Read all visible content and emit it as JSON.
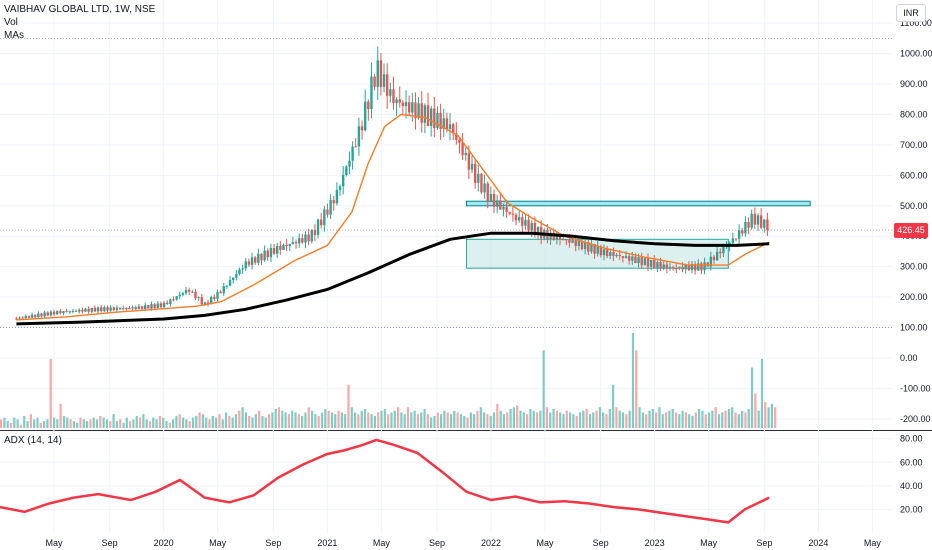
{
  "header": {
    "symbol_line": "VAIBHAV GLOBAL LTD, 1W, NSE",
    "vol_label": "Vol",
    "mas_label": "MAs",
    "currency": "INR",
    "last_price": "426.45",
    "adx_label": "ADX (14, 14)"
  },
  "colors": {
    "up": "#26a69a",
    "down": "#ef5350",
    "vol_up": "#80cbc4",
    "vol_down": "#f7a8a8",
    "ma_fast": "#f57c28",
    "ma_slow": "#000000",
    "adx": "#f23645",
    "box_fill": "#b2dfdb",
    "box_stroke": "#26a69a",
    "zone_fill": "#80deea",
    "zone_stroke": "#00838f"
  },
  "chart_data": [
    {
      "type": "line",
      "name": "price-panel",
      "x_ticks": [
        "May",
        "Sep",
        "2020",
        "May",
        "Sep",
        "2021",
        "May",
        "Sep",
        "2022",
        "May",
        "Sep",
        "2023",
        "May",
        "Sep",
        "2024",
        "May"
      ],
      "y_ticks": [
        "1100.00",
        "1000.00",
        "900.00",
        "800.00",
        "700.00",
        "600.00",
        "500.00",
        "400.00",
        "300.00",
        "200.00",
        "100.00",
        "0.00",
        "-100.00",
        "-200.00"
      ],
      "ylim": [
        -230,
        1130
      ],
      "dotted_levels": [
        1050,
        420,
        100
      ],
      "series": [
        {
          "x": [
            2019.1,
            2019.35,
            2019.6,
            2019.85,
            2020.0,
            2020.15,
            2020.25,
            2020.35,
            2020.5,
            2020.7,
            2020.9,
            2021.05,
            2021.2,
            2021.3,
            2021.4,
            2021.55,
            2021.75,
            2021.9,
            2022.0,
            2022.15,
            2022.3,
            2022.5,
            2022.7,
            2022.9,
            2023.1,
            2023.3,
            2023.5,
            2023.6,
            2023.7
          ],
          "values": [
            130,
            150,
            160,
            165,
            175,
            225,
            175,
            220,
            310,
            360,
            400,
            530,
            750,
            950,
            850,
            810,
            760,
            600,
            520,
            460,
            410,
            380,
            345,
            320,
            295,
            300,
            400,
            460,
            430
          ]
        },
        {
          "x": [
            2019.1,
            2019.4,
            2019.7,
            2019.95,
            2020.2,
            2020.35,
            2020.55,
            2020.8,
            2021.0,
            2021.15,
            2021.25,
            2021.35,
            2021.45,
            2021.6,
            2021.8,
            2021.95,
            2022.1,
            2022.25,
            2022.45,
            2022.7,
            2022.95,
            2023.2,
            2023.45,
            2023.55,
            2023.7
          ],
          "values": [
            125,
            135,
            150,
            160,
            170,
            185,
            240,
            320,
            370,
            480,
            640,
            760,
            800,
            790,
            730,
            620,
            510,
            460,
            400,
            360,
            330,
            305,
            305,
            340,
            380
          ]
        },
        {
          "x": [
            2019.1,
            2019.5,
            2020.0,
            2020.25,
            2020.5,
            2020.75,
            2021.0,
            2021.25,
            2021.5,
            2021.75,
            2022.0,
            2022.25,
            2022.5,
            2022.75,
            2023.0,
            2023.25,
            2023.5,
            2023.7
          ],
          "values": [
            112,
            118,
            128,
            140,
            160,
            190,
            225,
            280,
            340,
            390,
            410,
            410,
            400,
            385,
            375,
            370,
            370,
            375
          ]
        }
      ],
      "annotations": {
        "resistance_zone": {
          "x": [
            2021.85,
            2023.95
          ],
          "y": [
            500,
            515
          ]
        },
        "consolidation_box": {
          "x": [
            2021.85,
            2023.45
          ],
          "y": [
            295,
            390
          ]
        }
      }
    },
    {
      "type": "bar",
      "name": "volume-overlay",
      "values": [
        5,
        6,
        4,
        3,
        6,
        5,
        2,
        7,
        4,
        8,
        5,
        6,
        3,
        4,
        5,
        40,
        6,
        5,
        14,
        7,
        6,
        5,
        4,
        3,
        6,
        5,
        4,
        5,
        6,
        5,
        7,
        6,
        5,
        4,
        8,
        4,
        5,
        3,
        6,
        4,
        5,
        7,
        6,
        8,
        5,
        4,
        6,
        5,
        7,
        6,
        4,
        3,
        5,
        7,
        8,
        6,
        5,
        4,
        6,
        7,
        9,
        8,
        6,
        5,
        7,
        6,
        8,
        5,
        9,
        7,
        6,
        8,
        10,
        12,
        9,
        7,
        6,
        8,
        10,
        7,
        6,
        8,
        9,
        11,
        12,
        10,
        9,
        8,
        10,
        9,
        8,
        7,
        9,
        12,
        10,
        8,
        7,
        9,
        11,
        10,
        9,
        8,
        10,
        9,
        8,
        25,
        12,
        9,
        8,
        10,
        11,
        9,
        8,
        7,
        9,
        10,
        11,
        8,
        9,
        10,
        12,
        9,
        8,
        12,
        9,
        10,
        8,
        9,
        11,
        8,
        6,
        7,
        9,
        8,
        10,
        9,
        8,
        10,
        9,
        8,
        7,
        6,
        9,
        8,
        10,
        12,
        9,
        8,
        7,
        9,
        14,
        10,
        8,
        9,
        11,
        12,
        13,
        10,
        9,
        8,
        11,
        10,
        9,
        10,
        45,
        12,
        9,
        11,
        10,
        9,
        8,
        10,
        9,
        8,
        7,
        9,
        10,
        11,
        8,
        9,
        10,
        12,
        9,
        8,
        11,
        25,
        12,
        10,
        9,
        8,
        10,
        55,
        45,
        12,
        9,
        8,
        10,
        11,
        9,
        12,
        8,
        9,
        10,
        11,
        9,
        8,
        10,
        9,
        8,
        7,
        9,
        11,
        10,
        8,
        9,
        10,
        12,
        8,
        9,
        10,
        11,
        12,
        9,
        8,
        10,
        9,
        11,
        35,
        20,
        10,
        40,
        15,
        12,
        14,
        12
      ]
    },
    {
      "type": "line",
      "name": "adx-panel",
      "y_ticks": [
        "80.00",
        "60.00",
        "40.00",
        "20.00"
      ],
      "ylim": [
        0,
        84
      ],
      "x": [
        2019.0,
        2019.15,
        2019.3,
        2019.45,
        2019.6,
        2019.8,
        2019.95,
        2020.1,
        2020.25,
        2020.4,
        2020.55,
        2020.7,
        2020.85,
        2021.0,
        2021.1,
        2021.2,
        2021.3,
        2021.4,
        2021.55,
        2021.7,
        2021.85,
        2022.0,
        2022.15,
        2022.3,
        2022.45,
        2022.6,
        2022.75,
        2022.9,
        2023.05,
        2023.2,
        2023.35,
        2023.45,
        2023.55,
        2023.7
      ],
      "values": [
        22,
        18,
        25,
        30,
        33,
        28,
        35,
        45,
        30,
        26,
        32,
        47,
        58,
        67,
        70,
        74,
        79,
        75,
        68,
        52,
        35,
        28,
        31,
        26,
        27,
        25,
        22,
        20,
        17,
        14,
        11,
        9,
        20,
        30
      ]
    }
  ]
}
